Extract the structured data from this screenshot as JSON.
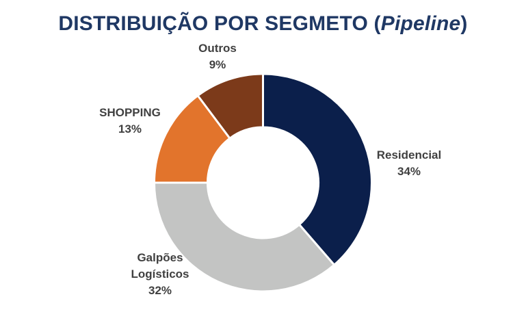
{
  "chart_data": {
    "type": "pie",
    "variant": "donut",
    "title_main": "DISTRIBUIÇÃO POR SEGMETO (",
    "title_italic": "Pipeline",
    "title_end": ")",
    "slices": [
      {
        "name": "Residencial",
        "label_lines": [
          "Residencial"
        ],
        "value": 34,
        "value_label": "34%",
        "color": "#0b1f4b"
      },
      {
        "name": "Galpões Logísticos",
        "label_lines": [
          "Galpões",
          "Logísticos"
        ],
        "value": 32,
        "value_label": "32%",
        "color": "#c3c4c3"
      },
      {
        "name": "SHOPPING",
        "label_lines": [
          "SHOPPING"
        ],
        "value": 13,
        "value_label": "13%",
        "color": "#e2742c"
      },
      {
        "name": "Outros",
        "label_lines": [
          "Outros"
        ],
        "value": 9,
        "value_label": "9%",
        "color": "#7c3a1a"
      }
    ],
    "start": "12 o'clock",
    "direction": "clockwise",
    "legend": "none"
  }
}
